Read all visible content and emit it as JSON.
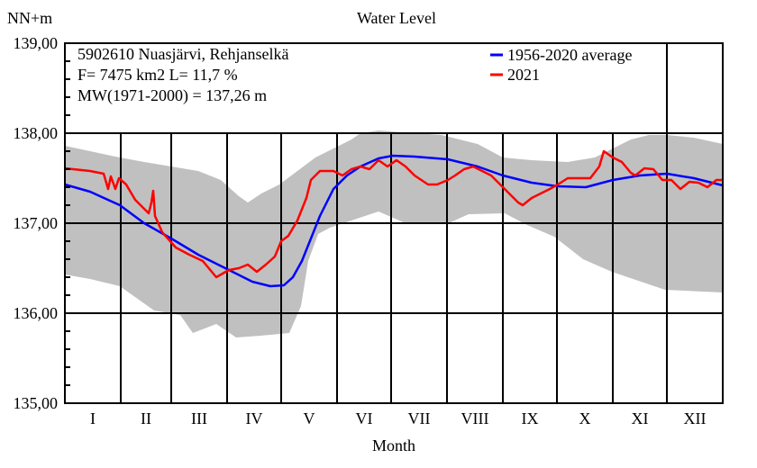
{
  "chart_data": {
    "type": "line",
    "title": "Water Level",
    "ylabel": "NN+m",
    "xlabel": "Month",
    "ylim": [
      135,
      139
    ],
    "yticks": [
      "135,00",
      "136,00",
      "137,00",
      "138,00",
      "139,00"
    ],
    "y_minor_step": 0.2,
    "x_unit": "day of year (0 = 1 Jan)",
    "xlim": [
      0,
      365
    ],
    "month_lengths": [
      31,
      28,
      31,
      30,
      31,
      30,
      31,
      31,
      30,
      31,
      30,
      31
    ],
    "categories": [
      "I",
      "II",
      "III",
      "IV",
      "V",
      "VI",
      "VII",
      "VIII",
      "IX",
      "X",
      "XI",
      "XII"
    ],
    "grid": true,
    "info_lines": [
      "5902610 Nuasjärvi, Rehjanselkä",
      "F=   7475 km2 L=  11,7 %",
      "MW(1971-2000) = 137,26 m"
    ],
    "legend_position": "top-right",
    "band": {
      "color": "#c0c0c0",
      "max": [
        [
          0,
          137.86
        ],
        [
          14,
          137.8
        ],
        [
          30.5,
          137.73
        ],
        [
          44,
          137.68
        ],
        [
          59,
          137.63
        ],
        [
          74,
          137.58
        ],
        [
          86.5,
          137.48
        ],
        [
          96.5,
          137.3
        ],
        [
          101.5,
          137.23
        ],
        [
          109,
          137.33
        ],
        [
          119,
          137.43
        ],
        [
          129,
          137.58
        ],
        [
          139,
          137.73
        ],
        [
          149,
          137.83
        ],
        [
          159,
          137.93
        ],
        [
          164,
          138.0
        ],
        [
          174,
          138.03
        ],
        [
          194,
          138.0
        ],
        [
          209,
          137.98
        ],
        [
          229,
          137.88
        ],
        [
          243,
          137.73
        ],
        [
          259,
          137.7
        ],
        [
          279,
          137.68
        ],
        [
          294,
          137.73
        ],
        [
          304,
          137.83
        ],
        [
          314,
          137.93
        ],
        [
          324,
          137.98
        ],
        [
          334,
          137.98
        ],
        [
          349,
          137.95
        ],
        [
          365,
          137.88
        ]
      ],
      "min": [
        [
          0,
          136.43
        ],
        [
          14,
          136.38
        ],
        [
          30.5,
          136.3
        ],
        [
          49.5,
          136.03
        ],
        [
          64,
          135.98
        ],
        [
          71,
          135.78
        ],
        [
          84,
          135.88
        ],
        [
          95,
          135.73
        ],
        [
          108.5,
          135.75
        ],
        [
          124.5,
          135.78
        ],
        [
          131,
          136.08
        ],
        [
          135,
          136.58
        ],
        [
          140.5,
          136.88
        ],
        [
          147,
          136.95
        ],
        [
          174,
          137.13
        ],
        [
          189,
          137.0
        ],
        [
          214,
          137.01
        ],
        [
          224,
          137.1
        ],
        [
          244,
          137.11
        ],
        [
          256.5,
          136.98
        ],
        [
          271.5,
          136.85
        ],
        [
          287.5,
          136.6
        ],
        [
          303.5,
          136.46
        ],
        [
          333,
          136.26
        ],
        [
          365,
          136.23
        ]
      ]
    },
    "series": [
      {
        "name": "1956-2020 average",
        "color": "#0000ff",
        "points": [
          [
            0,
            137.43
          ],
          [
            14,
            137.35
          ],
          [
            30.5,
            137.2
          ],
          [
            44,
            137.0
          ],
          [
            59,
            136.83
          ],
          [
            74,
            136.65
          ],
          [
            91,
            136.48
          ],
          [
            104,
            136.35
          ],
          [
            114,
            136.3
          ],
          [
            121.5,
            136.31
          ],
          [
            126.5,
            136.4
          ],
          [
            131.5,
            136.58
          ],
          [
            136.5,
            136.83
          ],
          [
            141.5,
            137.08
          ],
          [
            149,
            137.38
          ],
          [
            156.5,
            137.53
          ],
          [
            164,
            137.63
          ],
          [
            174,
            137.72
          ],
          [
            182,
            137.75
          ],
          [
            194,
            137.74
          ],
          [
            212.5,
            137.71
          ],
          [
            229,
            137.63
          ],
          [
            243,
            137.53
          ],
          [
            259,
            137.45
          ],
          [
            273.5,
            137.41
          ],
          [
            289,
            137.4
          ],
          [
            304,
            137.48
          ],
          [
            319,
            137.53
          ],
          [
            334,
            137.55
          ],
          [
            349,
            137.5
          ],
          [
            365,
            137.42
          ]
        ]
      },
      {
        "name": "2021",
        "color": "#ff0000",
        "points": [
          [
            0,
            137.61
          ],
          [
            14,
            137.58
          ],
          [
            21.5,
            137.55
          ],
          [
            24,
            137.38
          ],
          [
            25.5,
            137.52
          ],
          [
            28,
            137.38
          ],
          [
            30,
            137.5
          ],
          [
            34,
            137.43
          ],
          [
            39,
            137.26
          ],
          [
            46.5,
            137.11
          ],
          [
            48,
            137.23
          ],
          [
            49,
            137.36
          ],
          [
            50,
            137.08
          ],
          [
            54,
            136.9
          ],
          [
            61.5,
            136.73
          ],
          [
            69,
            136.65
          ],
          [
            76.5,
            136.58
          ],
          [
            84,
            136.4
          ],
          [
            91,
            136.48
          ],
          [
            96.5,
            136.5
          ],
          [
            101.5,
            136.54
          ],
          [
            106.5,
            136.46
          ],
          [
            111.5,
            136.54
          ],
          [
            116.5,
            136.63
          ],
          [
            120,
            136.8
          ],
          [
            124,
            136.86
          ],
          [
            129,
            137.03
          ],
          [
            134,
            137.28
          ],
          [
            136.5,
            137.48
          ],
          [
            141.5,
            137.58
          ],
          [
            149,
            137.58
          ],
          [
            154,
            137.53
          ],
          [
            159,
            137.6
          ],
          [
            164,
            137.63
          ],
          [
            169,
            137.6
          ],
          [
            174,
            137.7
          ],
          [
            179,
            137.63
          ],
          [
            184,
            137.7
          ],
          [
            189,
            137.63
          ],
          [
            194,
            137.53
          ],
          [
            201.5,
            137.43
          ],
          [
            206.5,
            137.43
          ],
          [
            212.5,
            137.48
          ],
          [
            216.5,
            137.53
          ],
          [
            221.5,
            137.6
          ],
          [
            226.5,
            137.63
          ],
          [
            231.5,
            137.58
          ],
          [
            236.5,
            137.53
          ],
          [
            241.5,
            137.43
          ],
          [
            246.5,
            137.33
          ],
          [
            251.5,
            137.23
          ],
          [
            254,
            137.2
          ],
          [
            259,
            137.28
          ],
          [
            264,
            137.33
          ],
          [
            269,
            137.38
          ],
          [
            273.5,
            137.43
          ],
          [
            279,
            137.5
          ],
          [
            286.5,
            137.5
          ],
          [
            291.5,
            137.5
          ],
          [
            296.5,
            137.63
          ],
          [
            299,
            137.8
          ],
          [
            304,
            137.73
          ],
          [
            309,
            137.68
          ],
          [
            314,
            137.56
          ],
          [
            316.5,
            137.53
          ],
          [
            321.5,
            137.61
          ],
          [
            326.5,
            137.6
          ],
          [
            331.5,
            137.48
          ],
          [
            336.5,
            137.48
          ],
          [
            341.5,
            137.38
          ],
          [
            346.5,
            137.46
          ],
          [
            351.5,
            137.45
          ],
          [
            356.5,
            137.4
          ],
          [
            361.5,
            137.48
          ],
          [
            365,
            137.48
          ]
        ]
      }
    ]
  }
}
